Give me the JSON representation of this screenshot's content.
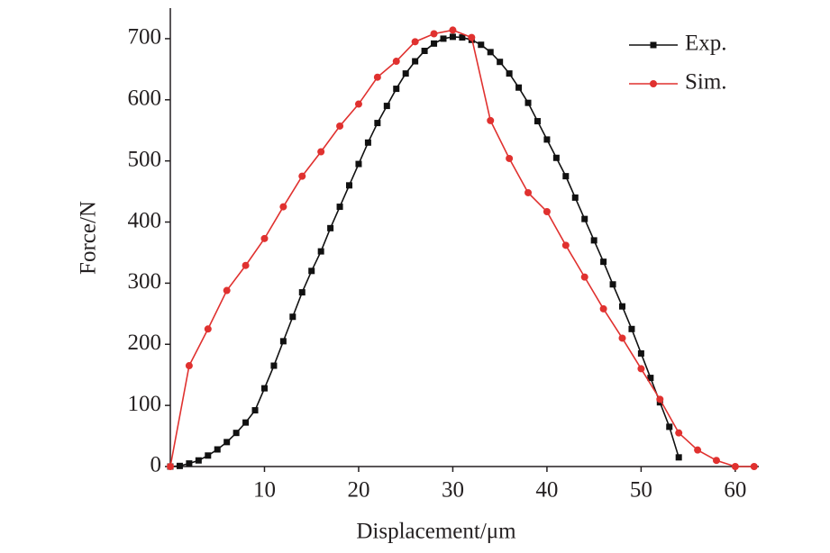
{
  "chart_data": {
    "type": "line",
    "x_label": "Displacement/μm",
    "y_label": "Force/N",
    "xlim": [
      0,
      62.5
    ],
    "ylim": [
      0,
      750
    ],
    "xticks": [
      10,
      20,
      30,
      40,
      50,
      60
    ],
    "yticks": [
      0,
      100,
      200,
      300,
      400,
      500,
      600,
      700
    ],
    "legend": "top-right",
    "series": [
      {
        "name": "Exp.",
        "color": "#111111",
        "marker": "square",
        "x": [
          0,
          1,
          2,
          3,
          4,
          5,
          6,
          7,
          8,
          9,
          10,
          11,
          12,
          13,
          14,
          15,
          16,
          17,
          18,
          19,
          20,
          21,
          22,
          23,
          24,
          25,
          26,
          27,
          28,
          29,
          30,
          31,
          32,
          33,
          34,
          35,
          36,
          37,
          38,
          39,
          40,
          41,
          42,
          43,
          44,
          45,
          46,
          47,
          48,
          49,
          50,
          51,
          52,
          53,
          54
        ],
        "values": [
          0,
          1,
          5,
          10,
          18,
          28,
          40,
          55,
          72,
          92,
          128,
          165,
          205,
          245,
          285,
          320,
          352,
          390,
          425,
          460,
          495,
          530,
          562,
          590,
          618,
          643,
          663,
          680,
          692,
          700,
          703,
          702,
          698,
          690,
          678,
          662,
          643,
          620,
          595,
          565,
          535,
          505,
          475,
          440,
          405,
          370,
          335,
          298,
          262,
          225,
          185,
          145,
          105,
          65,
          15
        ]
      },
      {
        "name": "Sim.",
        "color": "#e0312f",
        "marker": "circle",
        "x": [
          0,
          2,
          4,
          6,
          8,
          10,
          12,
          14,
          16,
          18,
          20,
          22,
          24,
          26,
          28,
          30,
          32,
          34,
          36,
          38,
          40,
          42,
          44,
          46,
          48,
          50,
          52,
          54,
          56,
          58,
          60,
          62
        ],
        "values": [
          0,
          165,
          225,
          288,
          329,
          373,
          425,
          475,
          515,
          557,
          593,
          637,
          663,
          695,
          708,
          714,
          702,
          566,
          504,
          448,
          417,
          362,
          310,
          258,
          210,
          160,
          110,
          55,
          27,
          10,
          0,
          0
        ]
      }
    ]
  }
}
